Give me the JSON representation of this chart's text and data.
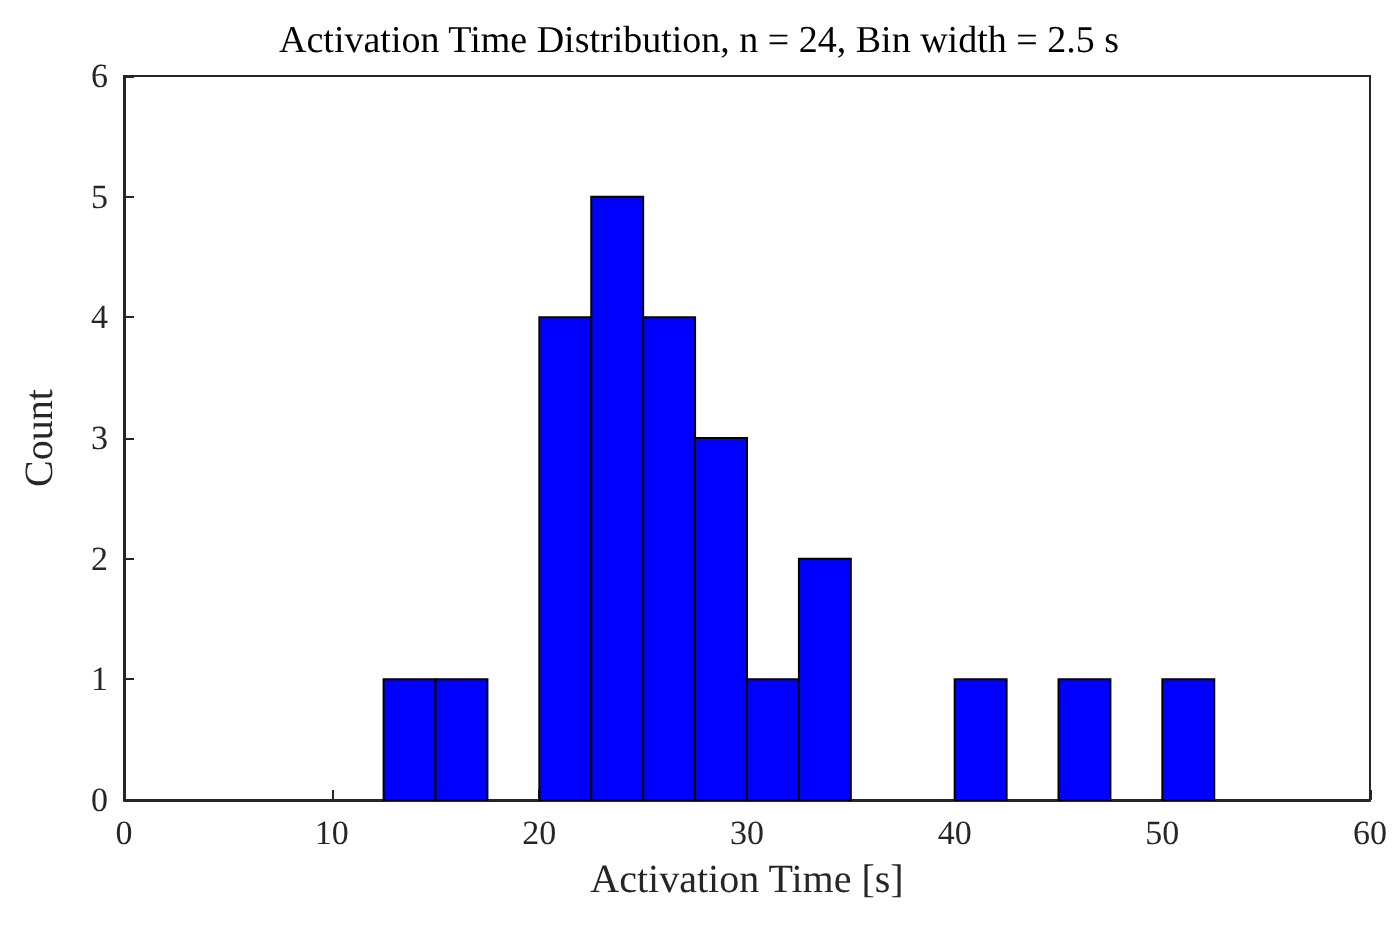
{
  "chart_data": {
    "type": "histogram",
    "title": "Activation Time Distribution, n = 24, Bin width = 2.5 s",
    "xlabel": "Activation Time [s]",
    "ylabel": "Count",
    "bins": [
      12.5,
      15,
      17.5,
      20,
      22.5,
      25,
      27.5,
      30,
      32.5,
      35,
      37.5,
      40,
      42.5,
      45,
      47.5,
      50,
      52.5
    ],
    "values": [
      1,
      1,
      0,
      4,
      5,
      4,
      3,
      1,
      2,
      0,
      0,
      1,
      0,
      1,
      0,
      1
    ],
    "color": "#0000ff",
    "xlim": [
      0,
      60
    ],
    "xticks": [
      0,
      10,
      20,
      30,
      40,
      50,
      60
    ],
    "ylim": [
      0,
      6
    ],
    "yticks": [
      0,
      1,
      2,
      3,
      4,
      5,
      6
    ],
    "grid": false
  }
}
